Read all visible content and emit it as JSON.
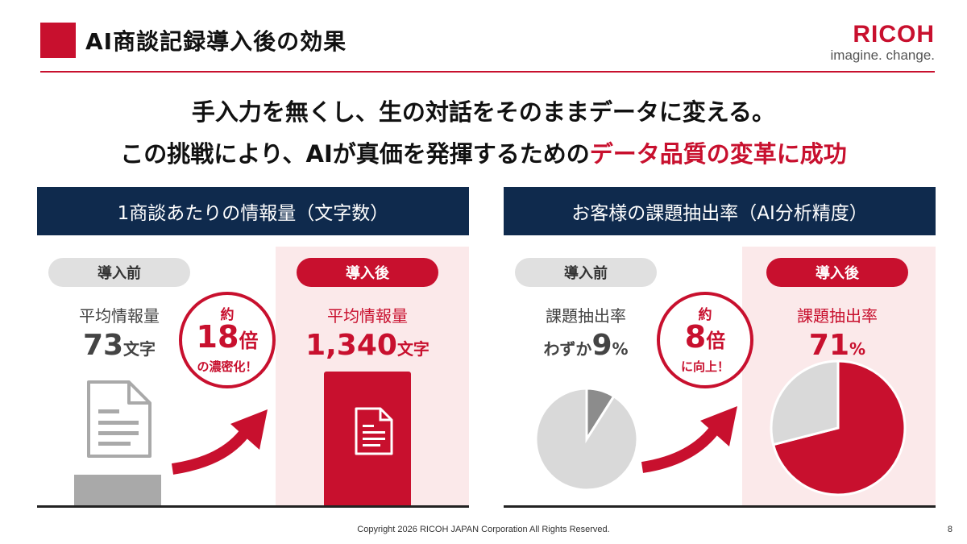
{
  "header": {
    "title": "AI商談記録導入後の効果",
    "brand_name": "RICOH",
    "brand_tagline": "imagine. change."
  },
  "headline": {
    "line1": "手入力を無くし、生の対話をそのままデータに変える。",
    "line2_prefix": "この挑戦により、AIが真価を発揮するための",
    "line2_accent": "データ品質の変革に成功"
  },
  "colors": {
    "accent": "#c8102e",
    "navy": "#0f2a4d",
    "gray": "#a9a9a9",
    "pink": "#fbe9ea"
  },
  "panel_info": {
    "heading": "1商談あたりの情報量（文字数）",
    "before": {
      "tag": "導入前",
      "label": "平均情報量",
      "value": "73",
      "unit": "文字"
    },
    "after": {
      "tag": "導入後",
      "label": "平均情報量",
      "value": "1,340",
      "unit": "文字"
    },
    "multiplier": {
      "prefix": "約",
      "value": "18",
      "unit": "倍",
      "caption": "の濃密化！"
    },
    "chart_data": {
      "type": "bar",
      "categories": [
        "導入前",
        "導入後"
      ],
      "values": [
        73,
        1340
      ],
      "ylabel": "",
      "title": ""
    },
    "icons": [
      "document-icon",
      "arrow-icon"
    ]
  },
  "panel_rate": {
    "heading": "お客様の課題抽出率（AI分析精度）",
    "before": {
      "tag": "導入前",
      "label": "課題抽出率",
      "prefix": "わずか",
      "value": "9",
      "unit": "%"
    },
    "after": {
      "tag": "導入後",
      "label": "課題抽出率",
      "value": "71",
      "unit": "%"
    },
    "multiplier": {
      "prefix": "約",
      "value": "8",
      "unit": "倍",
      "caption": "に向上！"
    },
    "chart_data": [
      {
        "type": "pie",
        "title": "",
        "slices": [
          {
            "label": "",
            "value": 9
          },
          {
            "label": "",
            "value": 91
          }
        ]
      },
      {
        "type": "pie",
        "title": "",
        "slices": [
          {
            "label": "",
            "value": 71
          },
          {
            "label": "",
            "value": 29
          }
        ]
      }
    ]
  },
  "footer": {
    "copyright": "Copyright 2026 RICOH JAPAN Corporation All Rights Reserved.",
    "page_number": "8"
  }
}
